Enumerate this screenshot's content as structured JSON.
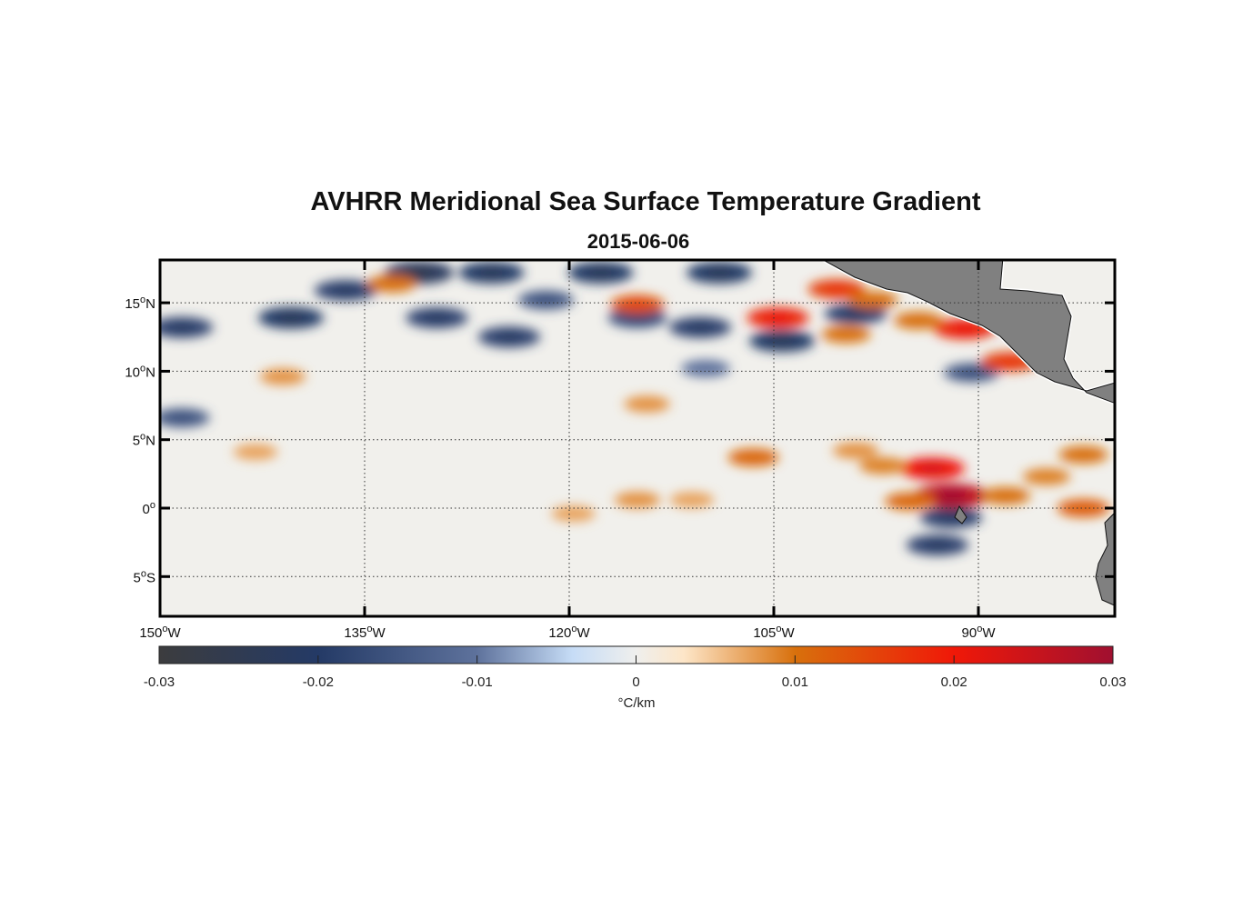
{
  "chart_data": {
    "type": "heatmap",
    "title": "AVHRR Meridional Sea Surface Temperature Gradient",
    "subtitle": "2015-06-06",
    "lon_range": [
      -150,
      -80
    ],
    "lat_range": [
      -8,
      18
    ],
    "lat_ticks": [
      {
        "value": 15,
        "num": "15",
        "sup": "o",
        "hemi": "N"
      },
      {
        "value": 10,
        "num": "10",
        "sup": "o",
        "hemi": "N"
      },
      {
        "value": 5,
        "num": "5",
        "sup": "o",
        "hemi": "N"
      },
      {
        "value": 0,
        "num": "0",
        "sup": "o",
        "hemi": ""
      },
      {
        "value": -5,
        "num": "5",
        "sup": "o",
        "hemi": "S"
      }
    ],
    "lon_ticks": [
      {
        "value": -150,
        "num": "150",
        "sup": "o",
        "hemi": "W"
      },
      {
        "value": -135,
        "num": "135",
        "sup": "o",
        "hemi": "W"
      },
      {
        "value": -120,
        "num": "120",
        "sup": "o",
        "hemi": "W"
      },
      {
        "value": -105,
        "num": "105",
        "sup": "o",
        "hemi": "W"
      },
      {
        "value": -90,
        "num": "90",
        "sup": "o",
        "hemi": "W"
      }
    ],
    "grid": true,
    "colorbar": {
      "range": [
        -0.03,
        0.03
      ],
      "ticks": [
        "-0.03",
        "-0.02",
        "-0.01",
        "0",
        "0.01",
        "0.02",
        "0.03"
      ],
      "label": "°C/km",
      "placement": "bottom",
      "colors": [
        {
          "v": -0.03,
          "c": "#3c3c3e"
        },
        {
          "v": -0.02,
          "c": "#243a66"
        },
        {
          "v": -0.01,
          "c": "#5e729c"
        },
        {
          "v": -0.004,
          "c": "#c6dcf6"
        },
        {
          "v": 0,
          "c": "#efefed"
        },
        {
          "v": 0.003,
          "c": "#fde6c8"
        },
        {
          "v": 0.01,
          "c": "#d8700c"
        },
        {
          "v": 0.02,
          "c": "#f01808"
        },
        {
          "v": 0.03,
          "c": "#a01030"
        }
      ]
    },
    "features": [
      {
        "lon": -148.4,
        "lat": 13.2,
        "value": -0.018
      },
      {
        "lon": -140.4,
        "lat": 13.9,
        "value": -0.02
      },
      {
        "lon": -136.4,
        "lat": 15.9,
        "value": -0.018
      },
      {
        "lon": -131,
        "lat": 17.2,
        "value": -0.022
      },
      {
        "lon": -129.7,
        "lat": 13.9,
        "value": -0.018
      },
      {
        "lon": -125.7,
        "lat": 17.2,
        "value": -0.02
      },
      {
        "lon": -124.4,
        "lat": 12.5,
        "value": -0.018
      },
      {
        "lon": -121.7,
        "lat": 15.2,
        "value": -0.014
      },
      {
        "lon": -117.7,
        "lat": 17.2,
        "value": -0.02
      },
      {
        "lon": -115,
        "lat": 13.9,
        "value": -0.016
      },
      {
        "lon": -110.4,
        "lat": 13.2,
        "value": -0.018
      },
      {
        "lon": -109,
        "lat": 17.2,
        "value": -0.02
      },
      {
        "lon": -104.4,
        "lat": 12.2,
        "value": -0.02
      },
      {
        "lon": -148.4,
        "lat": 6.6,
        "value": -0.014
      },
      {
        "lon": -93,
        "lat": -2.7,
        "value": -0.018
      },
      {
        "lon": -99,
        "lat": 14.2,
        "value": -0.018
      },
      {
        "lon": -91.7,
        "lat": 0.9,
        "value": -0.016
      },
      {
        "lon": -92,
        "lat": -0.7,
        "value": -0.018
      },
      {
        "lon": -90.5,
        "lat": 9.9,
        "value": -0.014
      },
      {
        "lon": -110,
        "lat": 10.2,
        "value": -0.01
      },
      {
        "lon": -133,
        "lat": 16.4,
        "value": 0.01
      },
      {
        "lon": -115,
        "lat": 14.9,
        "value": 0.013
      },
      {
        "lon": -104.7,
        "lat": 13.9,
        "value": 0.018
      },
      {
        "lon": -100.4,
        "lat": 16,
        "value": 0.015
      },
      {
        "lon": -97.7,
        "lat": 15.2,
        "value": 0.01
      },
      {
        "lon": -91,
        "lat": 13.1,
        "value": 0.018
      },
      {
        "lon": -94.4,
        "lat": 13.7,
        "value": 0.01
      },
      {
        "lon": -99.7,
        "lat": 12.7,
        "value": 0.01
      },
      {
        "lon": -87.7,
        "lat": 10.7,
        "value": 0.015
      },
      {
        "lon": -141,
        "lat": 9.6,
        "value": 0.008
      },
      {
        "lon": -114.3,
        "lat": 7.6,
        "value": 0.008
      },
      {
        "lon": -106.5,
        "lat": 3.7,
        "value": 0.011
      },
      {
        "lon": -93.4,
        "lat": 2.9,
        "value": 0.02
      },
      {
        "lon": -92,
        "lat": 0.9,
        "value": 0.026
      },
      {
        "lon": -95,
        "lat": 0.5,
        "value": 0.011
      },
      {
        "lon": -99,
        "lat": 4.2,
        "value": 0.008
      },
      {
        "lon": -97,
        "lat": 3.1,
        "value": 0.009
      },
      {
        "lon": -85,
        "lat": 2.3,
        "value": 0.009
      },
      {
        "lon": -82.3,
        "lat": 3.9,
        "value": 0.01
      },
      {
        "lon": -115,
        "lat": 0.6,
        "value": 0.008
      },
      {
        "lon": -111,
        "lat": 0.6,
        "value": 0.007
      },
      {
        "lon": -119.7,
        "lat": -0.4,
        "value": 0.007
      },
      {
        "lon": -88,
        "lat": 0.9,
        "value": 0.01
      },
      {
        "lon": -82.3,
        "lat": 0,
        "value": 0.012
      },
      {
        "lon": -143,
        "lat": 4.1,
        "value": 0.007
      }
    ]
  }
}
